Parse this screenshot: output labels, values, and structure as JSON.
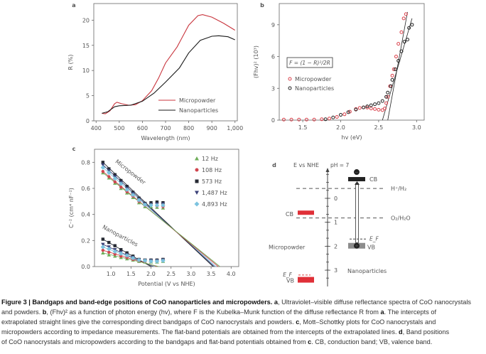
{
  "chart_data": [
    {
      "panel": "a",
      "type": "line",
      "xlabel": "Wavelength (nm)",
      "ylabel": "R (%)",
      "xlim": [
        390,
        1010
      ],
      "ylim": [
        0,
        23.3
      ],
      "xticks": [
        400,
        500,
        600,
        700,
        800,
        900,
        1000
      ],
      "xtick_labels": [
        "400",
        "500",
        "600",
        "700",
        "800",
        "900",
        "1,000"
      ],
      "yticks": [
        0,
        5,
        10,
        15,
        20
      ],
      "legend_position": "bottom-right",
      "series": [
        {
          "name": "Micropowder",
          "color": "#c8343c",
          "x": [
            425,
            440,
            460,
            480,
            490,
            510,
            540,
            570,
            600,
            640,
            670,
            700,
            750,
            800,
            840,
            860,
            900,
            950,
            1000
          ],
          "y": [
            1.5,
            1.4,
            2.0,
            3.4,
            3.7,
            3.4,
            3.1,
            3.2,
            4.0,
            6.0,
            8.5,
            11.5,
            14.7,
            19.0,
            20.9,
            21.1,
            20.6,
            19.4,
            18.0
          ]
        },
        {
          "name": "Nanoparticles",
          "color": "#1a1a1a",
          "x": [
            425,
            450,
            480,
            500,
            550,
            600,
            650,
            700,
            760,
            800,
            850,
            900,
            930,
            970,
            1000
          ],
          "y": [
            1.5,
            1.8,
            2.8,
            3.0,
            3.1,
            3.9,
            5.5,
            7.7,
            10.5,
            13.5,
            16.0,
            16.8,
            16.9,
            16.7,
            16.1
          ]
        }
      ]
    },
    {
      "panel": "b",
      "type": "scatter",
      "xlabel": "hv (eV)",
      "ylabel": "(Fhv)² (10³)",
      "xlim": [
        1.19,
        3.1
      ],
      "ylim": [
        0,
        11
      ],
      "xticks": [
        1.5,
        2.0,
        2.5,
        3.0
      ],
      "xtick_labels": [
        "1.5",
        "2.0",
        "2.5",
        "3.0"
      ],
      "yticks": [
        0,
        3,
        6,
        9
      ],
      "annotation": "F = (1 − R)²/2R",
      "legend_position": "middle-left",
      "series": [
        {
          "name": "Micropowder",
          "color": "#d9404a",
          "x": [
            1.25,
            1.35,
            1.45,
            1.55,
            1.65,
            1.75,
            1.85,
            1.95,
            2.05,
            2.12,
            2.2,
            2.25,
            2.3,
            2.35,
            2.4,
            2.45,
            2.5,
            2.55,
            2.58,
            2.6,
            2.62,
            2.65,
            2.68,
            2.7,
            2.73,
            2.76,
            2.8,
            2.83,
            2.86
          ],
          "y": [
            0.05,
            0.05,
            0.05,
            0.05,
            0.05,
            0.08,
            0.15,
            0.3,
            0.55,
            0.8,
            1.05,
            1.15,
            1.2,
            1.18,
            1.1,
            1.05,
            0.98,
            0.95,
            1.1,
            1.6,
            2.2,
            3.2,
            4.2,
            4.8,
            6.0,
            7.2,
            8.3,
            9.6,
            10.0
          ],
          "fit": [
            [
              2.62,
              0
            ],
            [
              2.88,
              10.2
            ]
          ]
        },
        {
          "name": "Nanoparticles",
          "color": "#222222",
          "x": [
            1.8,
            1.9,
            2.0,
            2.1,
            2.2,
            2.3,
            2.35,
            2.4,
            2.45,
            2.5,
            2.55,
            2.6,
            2.62,
            2.66,
            2.68,
            2.72,
            2.76,
            2.8,
            2.84,
            2.88,
            2.9,
            2.94
          ],
          "y": [
            0.08,
            0.25,
            0.5,
            0.75,
            1.0,
            1.2,
            1.3,
            1.4,
            1.5,
            1.6,
            1.8,
            2.2,
            2.6,
            3.2,
            3.8,
            4.8,
            5.6,
            6.5,
            7.4,
            7.6,
            8.7,
            9.0
          ],
          "fit": [
            [
              2.55,
              0
            ],
            [
              2.94,
              9.6
            ]
          ]
        }
      ]
    },
    {
      "panel": "c",
      "type": "scatter",
      "xlabel": "Potential (V vs NHE)",
      "ylabel": "C⁻² (cm⁴ nF⁻²)",
      "xlim": [
        0.59,
        4.19
      ],
      "ylim": [
        0,
        0.9
      ],
      "xticks": [
        1.0,
        1.5,
        2.0,
        2.5,
        3.0,
        3.5,
        4.0
      ],
      "xtick_labels": [
        "1.0",
        "1.5",
        "2.0",
        "2.5",
        "3.0",
        "3.5",
        "4.0"
      ],
      "yticks": [
        0,
        0.2,
        0.4,
        0.6,
        0.8
      ],
      "ytick_labels": [
        "0.0",
        "0.2",
        "0.4",
        "0.6",
        "0.8"
      ],
      "annotations": [
        "Micropowder",
        "Nanoparticles"
      ],
      "legend_position": "top-right",
      "x": [
        0.8,
        0.95,
        1.1,
        1.25,
        1.4,
        1.55,
        1.7,
        1.85,
        2.0,
        2.15,
        2.3
      ],
      "series": [
        {
          "name": "12 Hz",
          "color": "#6fae5a",
          "marker": "triangle-up",
          "micropowder": [
            0.72,
            0.68,
            0.64,
            0.6,
            0.565,
            0.53,
            0.49,
            0.46,
            0.46,
            0.455,
            0.45
          ],
          "micro_intercept": 3.72,
          "nanoparticles": [
            0.105,
            0.09,
            0.08,
            0.07,
            0.06,
            0.05,
            0.04,
            0.035,
            0.035,
            0.035,
            0.04
          ],
          "nano_intercept": 2.2
        },
        {
          "name": "108 Hz",
          "color": "#d0454f",
          "marker": "circle",
          "micropowder": [
            0.73,
            0.69,
            0.65,
            0.61,
            0.575,
            0.54,
            0.5,
            0.47,
            0.47,
            0.465,
            0.46
          ],
          "micro_intercept": 3.68,
          "nanoparticles": [
            0.125,
            0.11,
            0.095,
            0.08,
            0.07,
            0.055,
            0.045,
            0.04,
            0.04,
            0.04,
            0.045
          ],
          "nano_intercept": 2.15
        },
        {
          "name": "573 Hz",
          "color": "#262a33",
          "marker": "square",
          "micropowder": [
            0.8,
            0.75,
            0.705,
            0.66,
            0.615,
            0.57,
            0.525,
            0.485,
            0.49,
            0.495,
            0.49
          ],
          "micro_intercept": 3.55,
          "nanoparticles": [
            0.21,
            0.185,
            0.16,
            0.13,
            0.105,
            0.08,
            0.055,
            0.05,
            0.05,
            0.05,
            0.055
          ],
          "nano_intercept": 2.0
        },
        {
          "name": "1,487 Hz",
          "color": "#3b4178",
          "marker": "triangle-down",
          "micropowder": [
            0.78,
            0.735,
            0.69,
            0.645,
            0.6,
            0.56,
            0.515,
            0.48,
            0.475,
            0.48,
            0.48
          ],
          "micro_intercept": 3.58,
          "nanoparticles": [
            0.17,
            0.15,
            0.13,
            0.11,
            0.09,
            0.07,
            0.05,
            0.045,
            0.045,
            0.045,
            0.05
          ],
          "nano_intercept": 2.05
        },
        {
          "name": "4,893 Hz",
          "color": "#7cc3df",
          "marker": "diamond",
          "micropowder": [
            0.76,
            0.72,
            0.675,
            0.635,
            0.59,
            0.55,
            0.51,
            0.475,
            0.47,
            0.47,
            0.47
          ],
          "micro_intercept": 3.62,
          "nanoparticles": [
            0.15,
            0.135,
            0.115,
            0.1,
            0.085,
            0.065,
            0.05,
            0.045,
            0.04,
            0.04,
            0.045
          ],
          "nano_intercept": 2.1
        }
      ]
    }
  ],
  "panel_labels": {
    "a": "a",
    "b": "b",
    "c": "c",
    "d": "d"
  },
  "diagram_d": {
    "axis_label": "E vs NHE",
    "ph_label": "pH = 7",
    "ticks": [
      "0",
      "1",
      "2",
      "3"
    ],
    "redox_levels": [
      {
        "label": "H⁺/H₂",
        "energy": -0.41
      },
      {
        "label": "O₂/H₂O",
        "energy": 0.82
      }
    ],
    "micropowder": {
      "name": "Micropowder",
      "color": "#e03038",
      "cb_label": "CB",
      "cb": 0.6,
      "vb_label": "VB",
      "vb": 3.4,
      "ef_label": "E_F",
      "ef": 3.2
    },
    "nanoparticles": {
      "name": "Nanoparticles",
      "cb_label": "CB",
      "cb": -0.8,
      "vb_label": "VB",
      "vb": 1.98,
      "ef_label": "E_F",
      "ef": 1.7,
      "electron": "−",
      "hole": "+"
    }
  },
  "caption": [
    {
      "t": "Figure 3 | Bandgaps and band-edge positions of CoO nanoparticles and micropowders. a",
      "b": true
    },
    {
      "t": ", Ultraviolet–visible diffuse reflectance spectra of CoO nanocrystals"
    },
    {
      "br": true
    },
    {
      "t": "and powders. "
    },
    {
      "t": "b",
      "b": true
    },
    {
      "t": ", (Fhv)² as a function of photon energy (hv), where F is the Kubelka–Munk function of the diffuse reflectance R from "
    },
    {
      "t": "a",
      "b": true
    },
    {
      "t": ". The intercepts of"
    },
    {
      "br": true
    },
    {
      "t": "extrapolated straight lines give the corresponding direct bandgaps of CoO nanocrystals and powders. "
    },
    {
      "t": "c",
      "b": true
    },
    {
      "t": ", Mott–Schottky plots for CoO nanocrystals and"
    },
    {
      "br": true
    },
    {
      "t": "micropowders according to impedance measurements. The flat-band potentials are obtained from the intercepts of the extrapolated lines. "
    },
    {
      "t": "d",
      "b": true
    },
    {
      "t": ", Band positions"
    },
    {
      "br": true
    },
    {
      "t": "of CoO nanocrystals and micropowders according to the bandgaps and flat-band potentials obtained from "
    },
    {
      "t": "c",
      "b": true
    },
    {
      "t": ". CB, conduction band; VB, valence band."
    }
  ]
}
